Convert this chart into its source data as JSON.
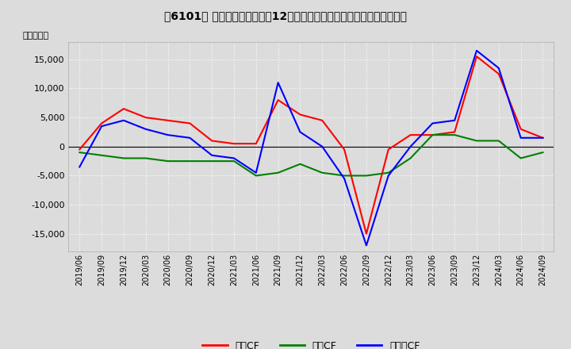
{
  "title": "[6101]  キャッシュフローの12か月移動合計の対前年同期増減額の推移",
  "title2": "［6101］ キャッシュフローの12か月移動合計の対前年同期増減額の推移",
  "ylabel": "（百万円）",
  "ylim": [
    -18000,
    18000
  ],
  "yticks": [
    -15000,
    -10000,
    -5000,
    0,
    5000,
    10000,
    15000
  ],
  "background_color": "#dcdcdc",
  "plot_bg_color": "#dcdcdc",
  "grid_color": "#ffffff",
  "legend_labels": [
    "営業CF",
    "投資CF",
    "フリーCF"
  ],
  "line_colors": [
    "#ff0000",
    "#008000",
    "#0000ff"
  ],
  "x_labels": [
    "2019/06",
    "2019/09",
    "2019/12",
    "2020/03",
    "2020/06",
    "2020/09",
    "2020/12",
    "2021/03",
    "2021/06",
    "2021/09",
    "2021/12",
    "2022/03",
    "2022/06",
    "2022/09",
    "2022/12",
    "2023/03",
    "2023/06",
    "2023/09",
    "2023/12",
    "2024/03",
    "2024/06",
    "2024/09"
  ],
  "operating_cf": [
    -500,
    4000,
    6500,
    5000,
    4500,
    4000,
    1000,
    500,
    500,
    8000,
    5500,
    4500,
    -500,
    -15000,
    -500,
    2000,
    2000,
    2500,
    15500,
    12500,
    3000,
    1500
  ],
  "investing_cf": [
    -1000,
    -1500,
    -2000,
    -2000,
    -2500,
    -2500,
    -2500,
    -2500,
    -5000,
    -4500,
    -3000,
    -4500,
    -5000,
    -5000,
    -4500,
    -2000,
    2000,
    2000,
    1000,
    1000,
    -2000,
    -1000
  ],
  "free_cf": [
    -3500,
    3500,
    4500,
    3000,
    2000,
    1500,
    -1500,
    -2000,
    -4500,
    11000,
    2500,
    0,
    -5500,
    -17000,
    -5000,
    0,
    4000,
    4500,
    16500,
    13500,
    1500,
    1500
  ]
}
